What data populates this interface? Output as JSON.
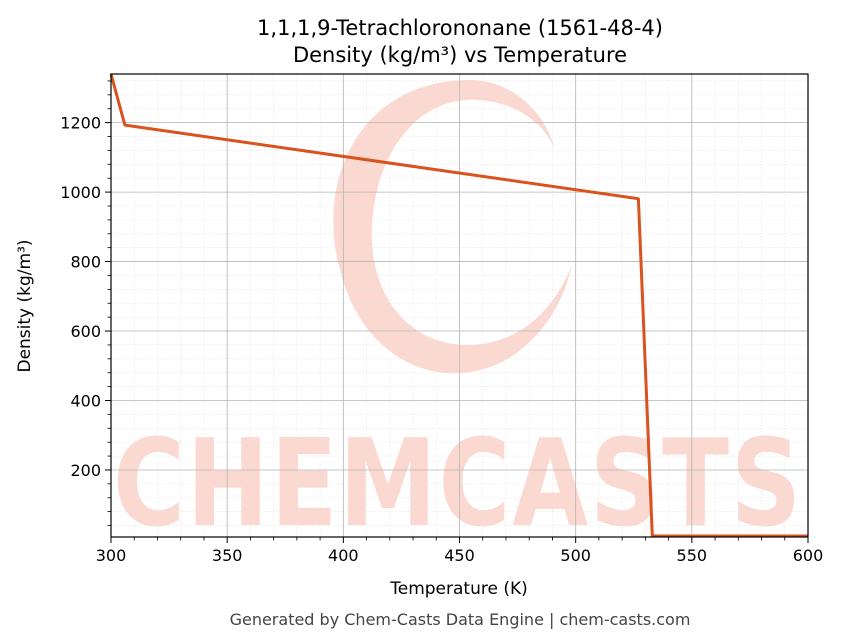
{
  "chart_data": {
    "type": "line",
    "title": "1,1,1,9-Tetrachlorononane (1561-48-4)",
    "subtitle": "Density (kg/m³) vs Temperature",
    "xlabel": "Temperature (K)",
    "ylabel": "Density (kg/m³)",
    "xlim": [
      300,
      600
    ],
    "ylim": [
      7,
      1340
    ],
    "x_ticks": [
      300,
      350,
      400,
      450,
      500,
      550,
      600
    ],
    "y_ticks": [
      200,
      400,
      600,
      800,
      1000,
      1200
    ],
    "grid": true,
    "legend": "none",
    "series": [
      {
        "color": "#d9531e",
        "x": [
          300,
          306,
          527,
          533,
          600
        ],
        "y": [
          1340,
          1193,
          981,
          10,
          10
        ]
      }
    ]
  },
  "watermark": "CHEMCASTS",
  "footer": "Generated by Chem-Casts Data Engine | chem-casts.com"
}
